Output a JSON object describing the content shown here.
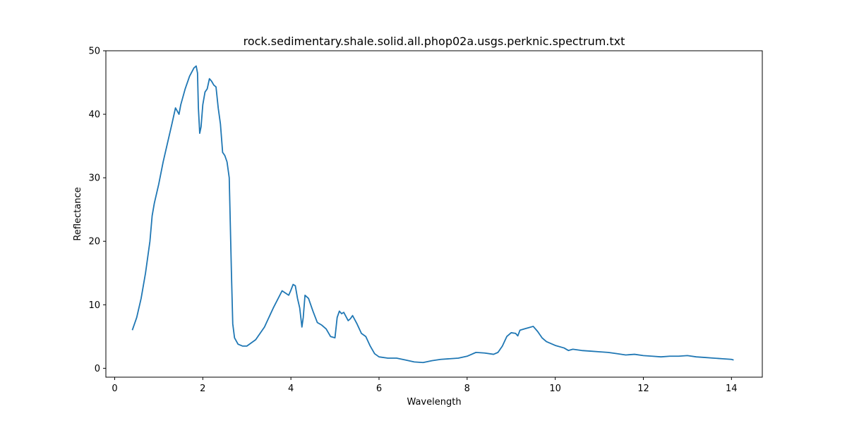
{
  "chart_data": {
    "type": "line",
    "title": "rock.sedimentary.shale.solid.all.phop02a.usgs.perknic.spectrum.txt",
    "xlabel": "Wavelength",
    "ylabel": "Reflectance",
    "xlim": [
      -0.2,
      14.7
    ],
    "ylim": [
      -1.4,
      50
    ],
    "xticks": [
      0,
      2,
      4,
      6,
      8,
      10,
      12,
      14
    ],
    "yticks": [
      0,
      10,
      20,
      30,
      40,
      50
    ],
    "grid": false,
    "colors": {
      "line": "#1f77b4"
    },
    "series": [
      {
        "x": [
          0.4,
          0.5,
          0.6,
          0.7,
          0.8,
          0.85,
          0.9,
          1.0,
          1.1,
          1.2,
          1.3,
          1.38,
          1.42,
          1.46,
          1.5,
          1.6,
          1.7,
          1.8,
          1.85,
          1.88,
          1.9,
          1.93,
          1.96,
          2.0,
          2.05,
          2.1,
          2.15,
          2.2,
          2.25,
          2.3,
          2.35,
          2.4,
          2.45,
          2.5,
          2.55,
          2.6,
          2.65,
          2.68,
          2.72,
          2.8,
          2.9,
          3.0,
          3.2,
          3.4,
          3.6,
          3.8,
          3.95,
          4.0,
          4.05,
          4.1,
          4.15,
          4.2,
          4.25,
          4.28,
          4.32,
          4.4,
          4.5,
          4.6,
          4.7,
          4.8,
          4.9,
          5.0,
          5.05,
          5.1,
          5.15,
          5.2,
          5.3,
          5.35,
          5.4,
          5.5,
          5.6,
          5.7,
          5.8,
          5.9,
          6.0,
          6.2,
          6.4,
          6.6,
          6.8,
          7.0,
          7.2,
          7.4,
          7.6,
          7.8,
          8.0,
          8.2,
          8.4,
          8.6,
          8.7,
          8.8,
          8.9,
          9.0,
          9.1,
          9.15,
          9.2,
          9.3,
          9.4,
          9.5,
          9.6,
          9.7,
          9.8,
          10.0,
          10.2,
          10.3,
          10.4,
          10.6,
          10.8,
          11.0,
          11.2,
          11.4,
          11.6,
          11.8,
          12.0,
          12.2,
          12.4,
          12.6,
          12.8,
          13.0,
          13.2,
          13.4,
          13.6,
          13.8,
          14.0,
          14.05
        ],
        "y": [
          6.0,
          8.0,
          11.0,
          15.0,
          20.0,
          24.0,
          26.0,
          29.0,
          32.5,
          35.5,
          38.5,
          41.0,
          40.5,
          40.0,
          41.5,
          44.0,
          46.0,
          47.3,
          47.6,
          46.5,
          41.0,
          37.0,
          38.0,
          41.5,
          43.5,
          44.0,
          45.6,
          45.2,
          44.6,
          44.3,
          41.0,
          38.5,
          34.0,
          33.5,
          32.5,
          30.0,
          15.0,
          7.0,
          4.8,
          3.8,
          3.5,
          3.5,
          4.5,
          6.5,
          9.5,
          12.2,
          11.5,
          12.3,
          13.2,
          13.0,
          11.0,
          9.5,
          6.5,
          8.0,
          11.5,
          11.0,
          9.0,
          7.2,
          6.8,
          6.2,
          5.0,
          4.8,
          8.0,
          9.0,
          8.6,
          8.8,
          7.5,
          7.8,
          8.3,
          7.0,
          5.5,
          5.0,
          3.5,
          2.3,
          1.8,
          1.6,
          1.6,
          1.3,
          1.0,
          0.9,
          1.2,
          1.4,
          1.5,
          1.6,
          1.9,
          2.5,
          2.4,
          2.2,
          2.5,
          3.5,
          5.0,
          5.6,
          5.5,
          5.1,
          6.0,
          6.2,
          6.4,
          6.6,
          5.8,
          4.8,
          4.2,
          3.6,
          3.2,
          2.8,
          3.0,
          2.8,
          2.7,
          2.6,
          2.5,
          2.3,
          2.1,
          2.2,
          2.0,
          1.9,
          1.8,
          1.9,
          1.9,
          2.0,
          1.8,
          1.7,
          1.6,
          1.5,
          1.4,
          1.3
        ]
      }
    ]
  }
}
